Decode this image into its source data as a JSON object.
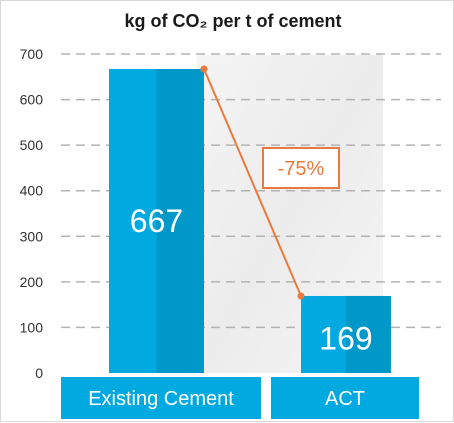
{
  "chart_data": {
    "type": "bar",
    "title": "kg of CO₂ per t of cement",
    "categories": [
      "Existing Cement",
      "ACT"
    ],
    "values": [
      667,
      169
    ],
    "data_labels": [
      "667",
      "169"
    ],
    "ylim": [
      0,
      700
    ],
    "yticks": [
      0,
      100,
      200,
      300,
      400,
      500,
      600,
      700
    ],
    "ytick_labels": [
      "0",
      "100",
      "200",
      "300",
      "400",
      "500",
      "600",
      "700"
    ],
    "grid": true,
    "legend": "none",
    "annotation": {
      "text": "-75%",
      "from_category": "Existing Cement",
      "to_category": "ACT"
    },
    "colors": {
      "bar": "#00a9e0",
      "bar_shade": "#0095c6",
      "category_box": "#00a9e0",
      "connector": "#ea7a3c",
      "gridline": "#b3b3b3"
    }
  }
}
